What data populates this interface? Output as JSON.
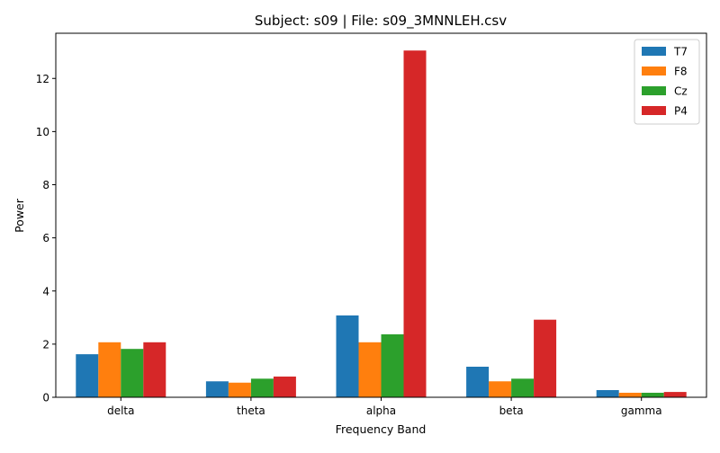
{
  "chart_data": {
    "type": "bar",
    "title": "Subject: s09 | File: s09_3MNNLEH.csv",
    "xlabel": "Frequency Band",
    "ylabel": "Power",
    "categories": [
      "delta",
      "theta",
      "alpha",
      "beta",
      "gamma"
    ],
    "series": [
      {
        "name": "T7",
        "color": "#1f77b4",
        "values": [
          1.62,
          0.6,
          3.08,
          1.15,
          0.27
        ]
      },
      {
        "name": "F8",
        "color": "#ff7f0e",
        "values": [
          2.07,
          0.55,
          2.07,
          0.6,
          0.17
        ]
      },
      {
        "name": "Cz",
        "color": "#2ca02c",
        "values": [
          1.82,
          0.7,
          2.37,
          0.7,
          0.17
        ]
      },
      {
        "name": "P4",
        "color": "#d62728",
        "values": [
          2.07,
          0.78,
          13.05,
          2.92,
          0.2
        ]
      }
    ],
    "ylim": [
      0,
      13.7
    ],
    "yticks": [
      0,
      2,
      4,
      6,
      8,
      10,
      12
    ],
    "grid": false,
    "legend_position": "top-right"
  }
}
